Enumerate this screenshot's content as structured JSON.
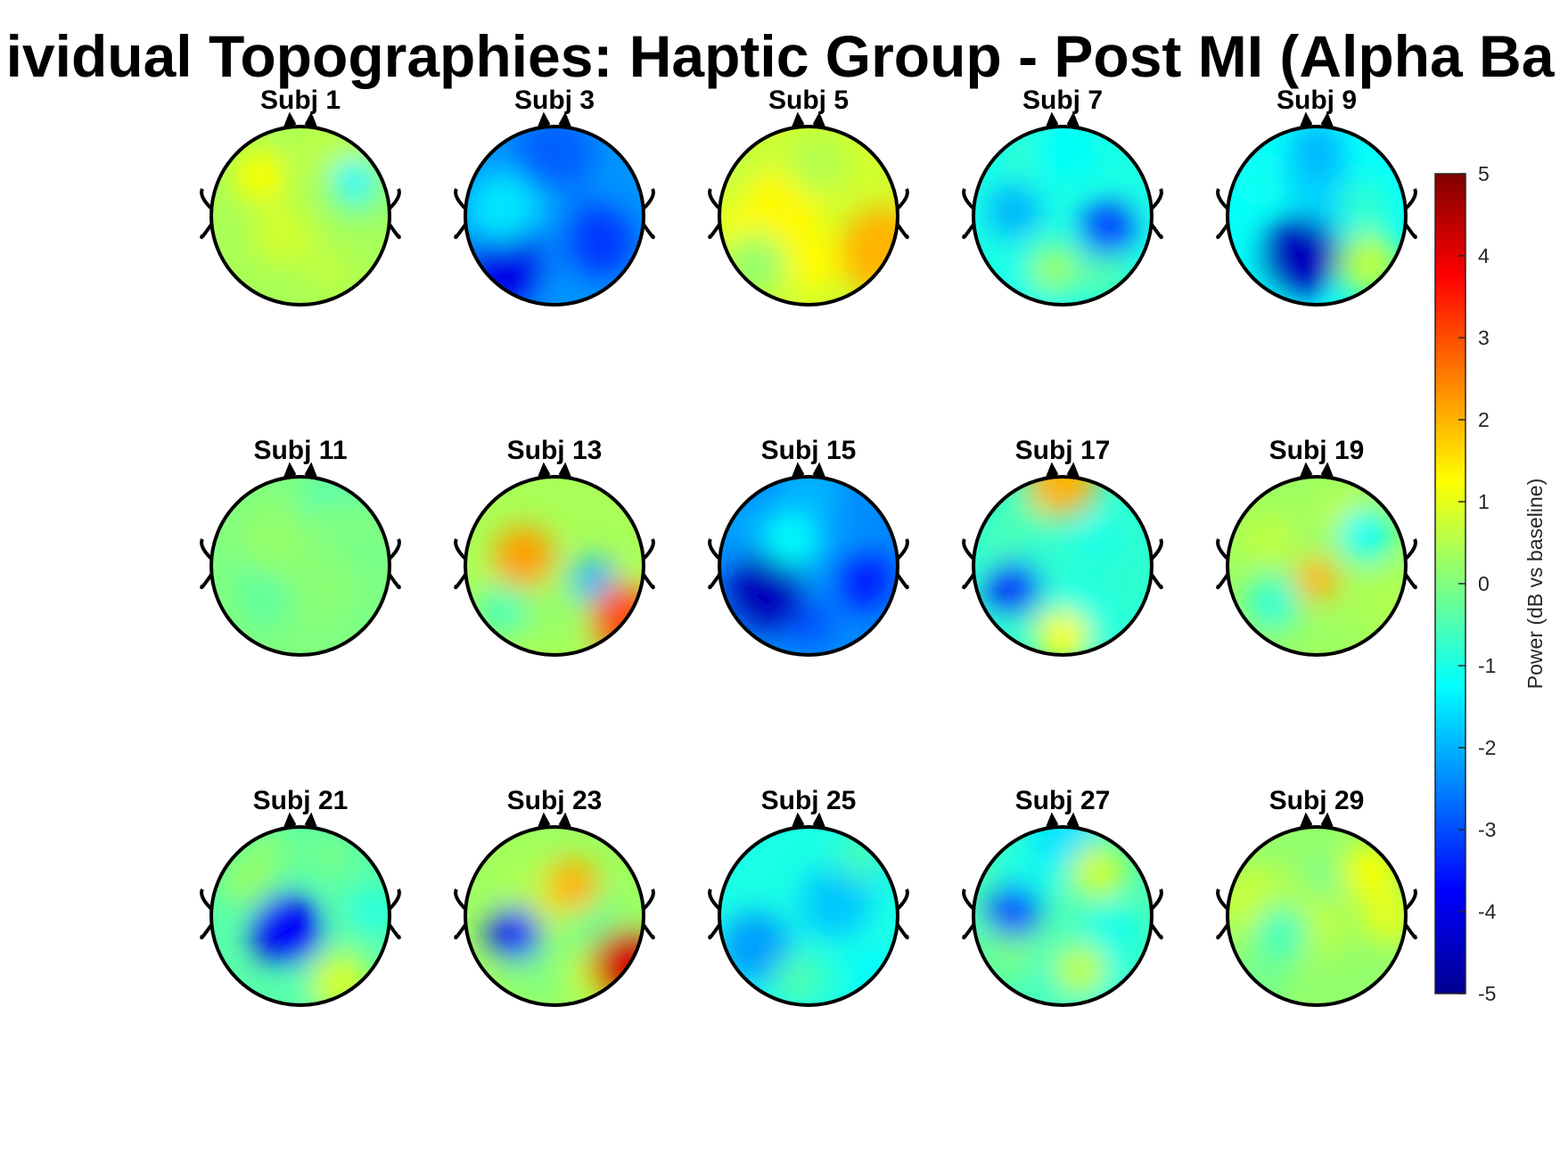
{
  "title": "ividual Topographies: Haptic Group - Post MI (Alpha Ba",
  "chart_data": {
    "type": "heatmap",
    "subtype": "eeg-scalp-topography-grid",
    "layout": "3 rows x 5 columns",
    "colormap": "jet",
    "subjects": [
      {
        "label": "Subj 1",
        "mean_power_db": 0.4
      },
      {
        "label": "Subj 3",
        "mean_power_db": -2.3
      },
      {
        "label": "Subj 5",
        "mean_power_db": 0.8
      },
      {
        "label": "Subj 7",
        "mean_power_db": -1.0
      },
      {
        "label": "Subj 9",
        "mean_power_db": -1.2
      },
      {
        "label": "Subj 11",
        "mean_power_db": 0.0
      },
      {
        "label": "Subj 13",
        "mean_power_db": 0.4
      },
      {
        "label": "Subj 15",
        "mean_power_db": -2.4
      },
      {
        "label": "Subj 17",
        "mean_power_db": -0.8
      },
      {
        "label": "Subj 19",
        "mean_power_db": 0.3
      },
      {
        "label": "Subj 21",
        "mean_power_db": -0.4
      },
      {
        "label": "Subj 23",
        "mean_power_db": 0.3
      },
      {
        "label": "Subj 25",
        "mean_power_db": -1.0
      },
      {
        "label": "Subj 27",
        "mean_power_db": -0.5
      },
      {
        "label": "Subj 29",
        "mean_power_db": 0.2
      }
    ],
    "colorbar": {
      "label": "Power (dB vs baseline)",
      "range": [
        -5,
        5
      ],
      "ticks": [
        "5",
        "4",
        "3",
        "2",
        "1",
        "0",
        "-1",
        "-2",
        "-3",
        "-4",
        "-5"
      ]
    },
    "colors": {
      "jet": [
        "#00008f",
        "#0000ff",
        "#0080ff",
        "#00ffff",
        "#80ff80",
        "#ffff00",
        "#ff8000",
        "#ff0000",
        "#800000"
      ]
    }
  }
}
